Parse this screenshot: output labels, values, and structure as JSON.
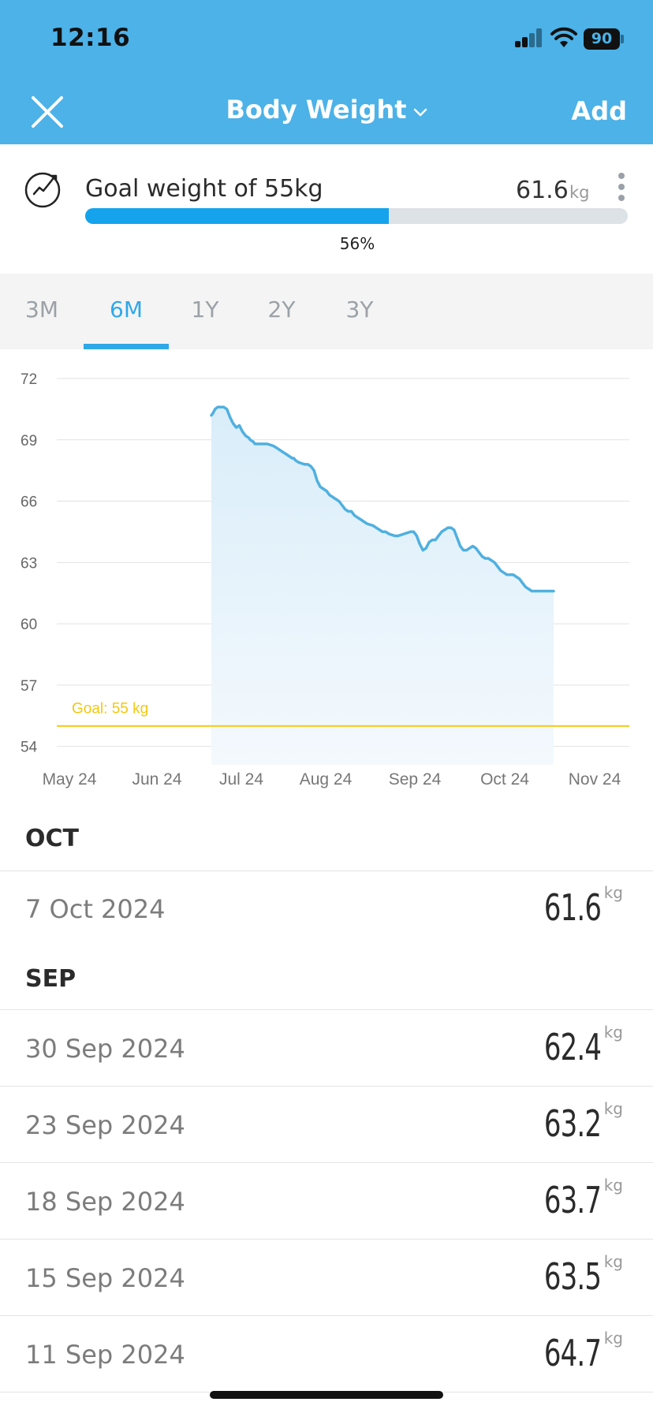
{
  "status_bar": {
    "time": "12:16",
    "battery": "90"
  },
  "header": {
    "title": "Body Weight",
    "add_label": "Add"
  },
  "goal": {
    "label": "Goal weight of 55kg",
    "current_value": "61.6",
    "unit": "kg",
    "progress_text": "56%",
    "progress_fraction": 0.56
  },
  "tabs": [
    {
      "label": "3M",
      "active": false
    },
    {
      "label": "6M",
      "active": true
    },
    {
      "label": "1Y",
      "active": false
    },
    {
      "label": "2Y",
      "active": false
    },
    {
      "label": "3Y",
      "active": false
    }
  ],
  "colors": {
    "header": "#4cb2e8",
    "accent": "#2fa8e8",
    "progress": "#14a3ec",
    "line": "#4fb0e0",
    "goal_line": "#f2c811"
  },
  "chart_data": {
    "type": "area",
    "y_ticks": [
      72,
      69,
      66,
      63,
      60,
      57,
      54
    ],
    "ylim": [
      53.1,
      72
    ],
    "x_ticks": [
      "May 24",
      "Jun 24",
      "Jul 24",
      "Aug 24",
      "Sep 24",
      "Oct 24",
      "Nov 24"
    ],
    "goal": {
      "value": 55,
      "label": "Goal: 55 kg"
    },
    "grid": true,
    "series": [
      {
        "x": [
          0,
          0.5,
          1.2,
          2,
          3.5,
          4,
          5,
          6,
          7,
          8,
          9,
          10,
          11,
          12,
          12.5,
          13.5,
          14,
          15,
          16,
          17,
          18,
          19,
          20,
          21,
          22,
          23,
          24,
          25,
          26,
          26.5,
          27,
          28,
          29,
          30,
          31,
          32,
          33,
          34,
          35,
          36,
          37,
          38,
          39,
          40,
          41,
          42,
          43,
          44,
          45,
          46,
          47,
          48,
          49,
          50,
          51,
          52,
          53,
          54,
          55,
          56,
          57,
          58,
          59,
          60,
          61,
          62,
          63,
          64,
          65,
          66,
          67,
          68,
          69,
          70,
          71,
          72,
          73,
          74,
          75,
          76,
          77,
          78,
          79,
          80,
          81,
          82,
          83,
          84,
          85,
          86,
          87,
          88,
          89,
          90,
          91,
          92,
          93,
          94,
          95,
          96,
          97,
          98,
          99,
          100,
          101,
          102,
          103,
          104,
          105,
          106,
          107,
          108,
          109,
          110
        ],
        "y": [
          70.2,
          70.3,
          70.5,
          70.6,
          70.6,
          70.6,
          70.5,
          70.1,
          69.8,
          69.6,
          69.7,
          69.4,
          69.2,
          69.1,
          69.0,
          68.9,
          68.8,
          68.8,
          68.8,
          68.8,
          68.8,
          68.75,
          68.7,
          68.6,
          68.5,
          68.4,
          68.3,
          68.2,
          68.1,
          68.1,
          68.0,
          67.9,
          67.85,
          67.8,
          67.8,
          67.7,
          67.5,
          67.0,
          66.7,
          66.6,
          66.5,
          66.3,
          66.2,
          66.1,
          66.0,
          65.8,
          65.6,
          65.5,
          65.5,
          65.3,
          65.2,
          65.1,
          65.0,
          64.9,
          64.85,
          64.8,
          64.7,
          64.6,
          64.5,
          64.5,
          64.4,
          64.35,
          64.3,
          64.3,
          64.35,
          64.4,
          64.45,
          64.5,
          64.5,
          64.3,
          63.9,
          63.6,
          63.7,
          64.0,
          64.1,
          64.1,
          64.3,
          64.5,
          64.6,
          64.7,
          64.7,
          64.6,
          64.2,
          63.8,
          63.6,
          63.6,
          63.7,
          63.8,
          63.7,
          63.5,
          63.3,
          63.2,
          63.2,
          63.1,
          63.0,
          62.8,
          62.6,
          62.5,
          62.4,
          62.4,
          62.4,
          62.3,
          62.2,
          62.0,
          61.8,
          61.7,
          61.6,
          61.6,
          61.6,
          61.6,
          61.6,
          61.6,
          61.6,
          61.6
        ]
      }
    ]
  },
  "entries": [
    {
      "month": "OCT",
      "items": [
        {
          "date": "7 Oct 2024",
          "value": "61.6",
          "unit": "kg"
        }
      ]
    },
    {
      "month": "SEP",
      "items": [
        {
          "date": "30 Sep 2024",
          "value": "62.4",
          "unit": "kg"
        },
        {
          "date": "23 Sep 2024",
          "value": "63.2",
          "unit": "kg"
        },
        {
          "date": "18 Sep 2024",
          "value": "63.7",
          "unit": "kg"
        },
        {
          "date": "15 Sep 2024",
          "value": "63.5",
          "unit": "kg"
        },
        {
          "date": "11 Sep 2024",
          "value": "64.7",
          "unit": "kg"
        }
      ]
    }
  ]
}
